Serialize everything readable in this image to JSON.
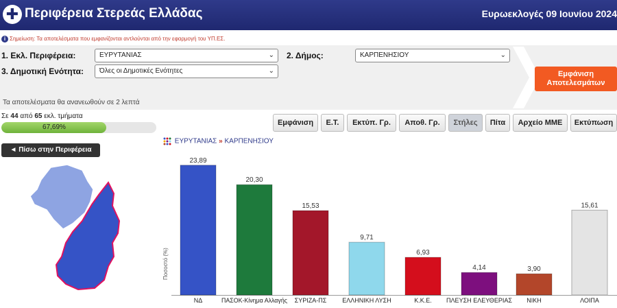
{
  "header": {
    "title": "Περιφέρεια Στερεάς Ελλάδας",
    "election": "Ευρωεκλογές 09 Ιουνίου 2024"
  },
  "notice": "Σημείωση: Τα αποτελέσματα που εμφανίζονται αντλούνται από την εφαρμογή του ΥΠ.ΕΣ.",
  "filters": {
    "region_label": "1. Εκλ. Περιφέρεια:",
    "region_value": "ΕΥΡΥΤΑΝΙΑΣ",
    "municipality_label": "2. Δήμος:",
    "municipality_value": "ΚΑΡΠΕΝΗΣΙΟΥ",
    "unit_label": "3. Δημοτική Ενότητα:",
    "unit_value": "Όλες οι Δημοτικές Ενότητες",
    "show_button_line1": "Εμφάνιση",
    "show_button_line2": "Αποτελεσμάτων"
  },
  "refresh_text": "Τα αποτελέσματα θα ανανεωθούν σε 2 λεπτά",
  "progress": {
    "prefix": "Σε",
    "counted": "44",
    "middle": "από",
    "total": "65",
    "suffix": "εκλ. τμήματα",
    "percent_label": "67,69%",
    "fraction": 0.6769
  },
  "toolbar": [
    "Εμφάνιση",
    "Ε.Τ.",
    "Εκτύπ. Γρ.",
    "Αποθ. Γρ.",
    "Στήλες",
    "Πίτα",
    "Αρχείο ΜΜΕ",
    "Εκτύπωση"
  ],
  "active_tool": "Στήλες",
  "back_button": "◄ Πίσω στην Περιφέρεια",
  "breadcrumb": {
    "region": "ΕΥΡΥΤΑΝΙΑΣ",
    "separator": "»",
    "municipality": "ΚΑΡΠΕΝΗΣΙΟΥ"
  },
  "chart_data": {
    "type": "bar",
    "categories": [
      "ΝΔ",
      "ΠΑΣΟΚ-Κίνημα Αλλαγής",
      "ΣΥΡΙΖΑ-ΠΣ",
      "ΕΛΛΗΝΙΚΗ ΛΥΣΗ",
      "Κ.Κ.Ε.",
      "ΠΛΕΥΣΗ ΕΛΕΥΘΕΡΙΑΣ",
      "ΝΙΚΗ",
      "ΛΟΙΠΑ"
    ],
    "values": [
      23.89,
      20.3,
      15.53,
      9.71,
      6.93,
      4.14,
      3.9,
      15.61
    ],
    "value_labels": [
      "23,89",
      "20,30",
      "15,53",
      "9,71",
      "6,93",
      "4,14",
      "3,90",
      "15,61"
    ],
    "colors": [
      "#3553c6",
      "#1e7a3c",
      "#a3172a",
      "#8fd8ec",
      "#d40e1c",
      "#7d0f7e",
      "#b3462a",
      "#e4e4e4"
    ],
    "ylabel": "Ποσοστό (%)",
    "ylim": [
      0,
      25
    ],
    "grid": false
  }
}
